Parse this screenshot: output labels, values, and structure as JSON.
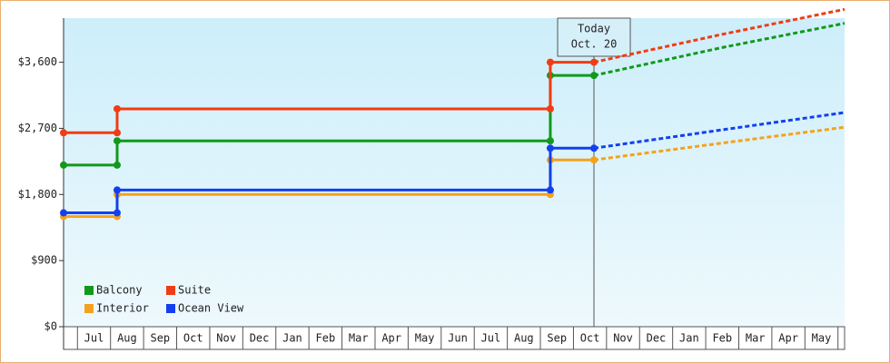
{
  "chart_data": {
    "type": "step-line",
    "categories": [
      "Jul",
      "Aug",
      "Sep",
      "Oct",
      "Nov",
      "Dec",
      "Jan",
      "Feb",
      "Mar",
      "Apr",
      "May",
      "Jun",
      "Jul",
      "Aug",
      "Sep",
      "Oct",
      "Nov",
      "Dec",
      "Jan",
      "Feb",
      "Mar",
      "Apr",
      "May"
    ],
    "xlim": [
      -0.92,
      22.7
    ],
    "ylim": [
      0,
      4200
    ],
    "yticks": [
      {
        "value": 0,
        "label": "$0"
      },
      {
        "value": 900,
        "label": "$900"
      },
      {
        "value": 1800,
        "label": "$1,800"
      },
      {
        "value": 2700,
        "label": "$2,700"
      },
      {
        "value": 3600,
        "label": "$3,600"
      }
    ],
    "annotation": {
      "x": 15.12,
      "lines": [
        "Today",
        "Oct. 20"
      ]
    },
    "series": [
      {
        "name": "Balcony",
        "color": "#11991c",
        "x": [
          -0.92,
          0.7,
          0.7,
          13.8,
          13.8,
          15.12
        ],
        "values": [
          2200,
          2200,
          2530,
          2530,
          3420,
          3420
        ],
        "forecast": {
          "x": [
            15.12,
            19,
            22.7
          ],
          "values": [
            3420,
            3800,
            4130
          ]
        }
      },
      {
        "name": "Suite",
        "color": "#f03c14",
        "x": [
          -0.92,
          0.7,
          0.7,
          13.8,
          13.8,
          15.12
        ],
        "values": [
          2640,
          2640,
          2965,
          2965,
          3600,
          3600
        ],
        "forecast": {
          "x": [
            15.12,
            19,
            22.7
          ],
          "values": [
            3600,
            3980,
            4320
          ]
        }
      },
      {
        "name": "Interior",
        "color": "#f5a21b",
        "x": [
          -0.92,
          0.7,
          0.7,
          13.8,
          13.8,
          15.12
        ],
        "values": [
          1500,
          1500,
          1800,
          1800,
          2270,
          2270
        ],
        "forecast": {
          "x": [
            15.12,
            19,
            22.7
          ],
          "values": [
            2270,
            2500,
            2715
          ]
        }
      },
      {
        "name": "Ocean View",
        "color": "#1240f0",
        "x": [
          -0.92,
          0.7,
          0.7,
          13.8,
          13.8,
          15.12
        ],
        "values": [
          1550,
          1550,
          1860,
          1860,
          2430,
          2430
        ],
        "forecast": {
          "x": [
            15.12,
            19,
            22.7
          ],
          "values": [
            2430,
            2680,
            2915
          ]
        }
      }
    ]
  }
}
